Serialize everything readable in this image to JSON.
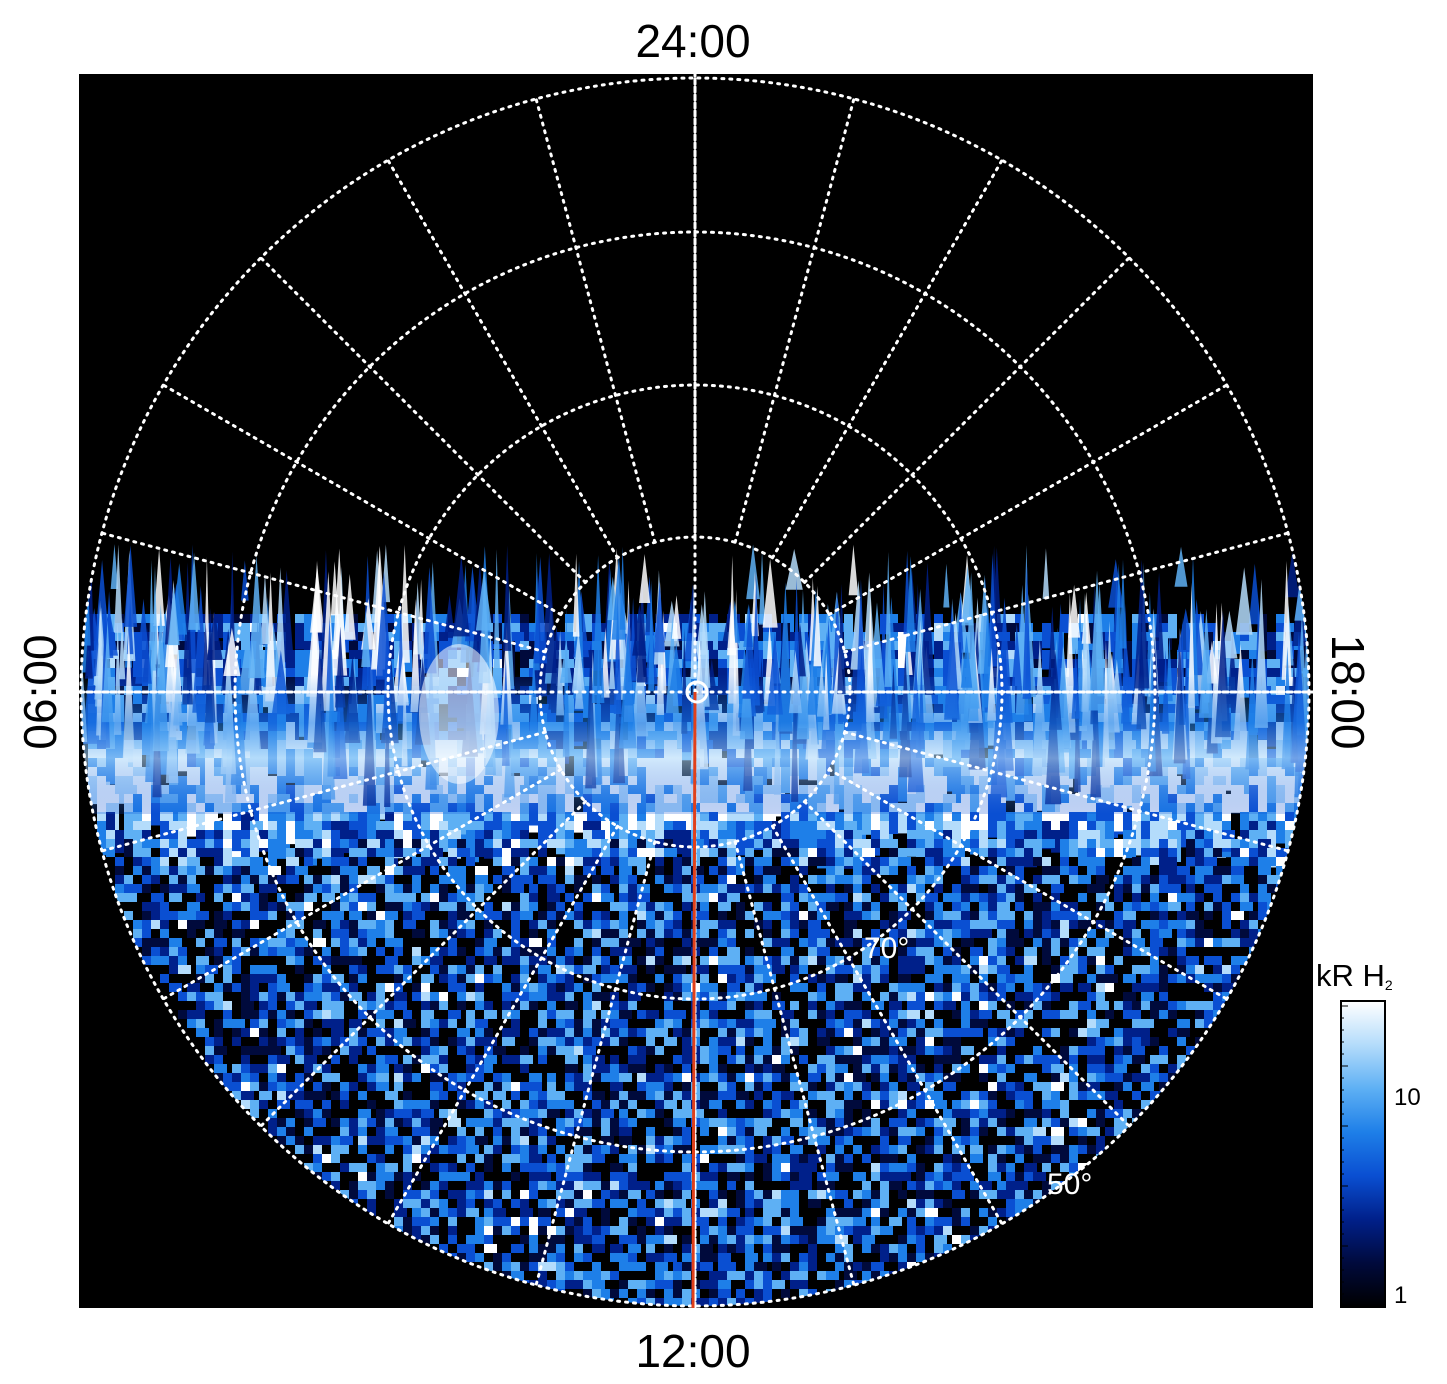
{
  "chart_data": {
    "type": "heatmap",
    "projection": "polar",
    "local_time_labels": {
      "top": "24:00",
      "bottom": "12:00",
      "left": "06:00",
      "right": "18:00"
    },
    "latitude_labels": [
      "70°",
      "50°"
    ],
    "colorbar": {
      "title": "kR H",
      "title_subscript": "2",
      "scale": "log",
      "range": [
        1,
        30
      ],
      "ticks": [
        "1",
        "10"
      ],
      "colormap": [
        "#000000",
        "#000a3c",
        "#00208a",
        "#0a4fd2",
        "#1e7fe8",
        "#5eb0f4",
        "#b4dcfb",
        "#ffffff"
      ]
    },
    "meridian_line": {
      "local_time": "12:00",
      "color": "#e0401a"
    },
    "grid": true,
    "background": "#000000",
    "grid_color": "#ffffff"
  }
}
